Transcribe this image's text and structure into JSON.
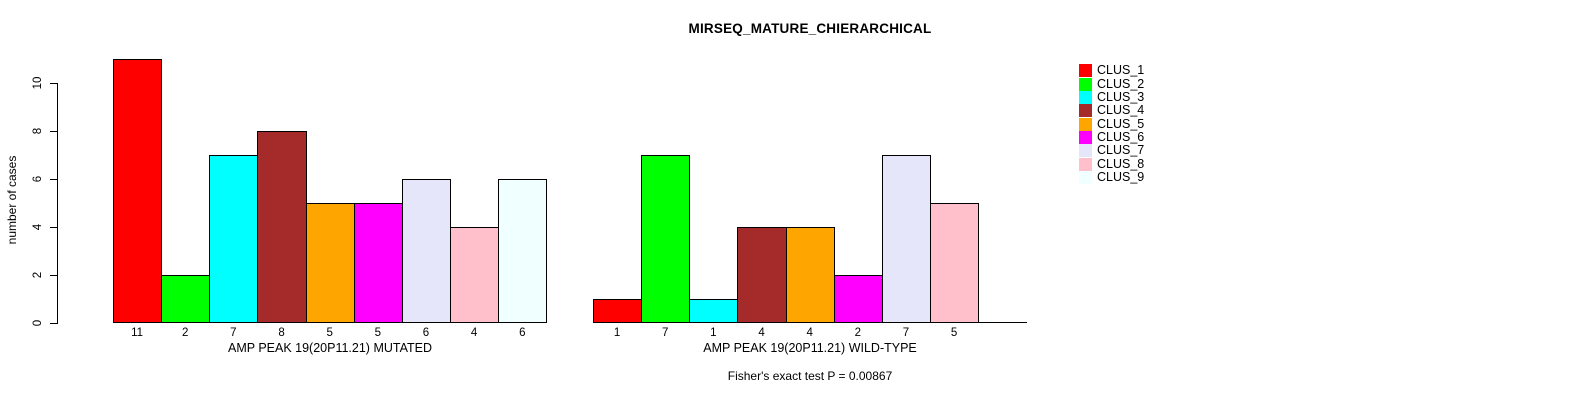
{
  "chart_data": {
    "type": "bar",
    "title": "MIRSEQ_MATURE_CHIERARCHICAL",
    "ylabel": "number of cases",
    "ylim": [
      0,
      11
    ],
    "yticks": [
      0,
      2,
      4,
      6,
      8,
      10
    ],
    "grid": false,
    "annotation": "Fisher's exact test P = 0.00867",
    "categories": [
      "CLUS_1",
      "CLUS_2",
      "CLUS_3",
      "CLUS_4",
      "CLUS_5",
      "CLUS_6",
      "CLUS_7",
      "CLUS_8",
      "CLUS_9"
    ],
    "groups": [
      {
        "xlabel": "AMP PEAK 19(20P11.21) MUTATED",
        "values": [
          11,
          2,
          7,
          8,
          5,
          5,
          6,
          4,
          6
        ],
        "bar_labels": [
          "11",
          "2",
          "7",
          "8",
          "5",
          "5",
          "6",
          "4",
          "6"
        ]
      },
      {
        "xlabel": "AMP PEAK 19(20P11.21) WILD-TYPE",
        "values": [
          1,
          7,
          1,
          4,
          4,
          2,
          7,
          5,
          0
        ],
        "bar_labels": [
          "1",
          "7",
          "1",
          "4",
          "4",
          "2",
          "7",
          "5",
          ""
        ]
      }
    ],
    "legend": {
      "position": "right",
      "entries": [
        {
          "label": "CLUS_1",
          "color": "#FF0000"
        },
        {
          "label": "CLUS_2",
          "color": "#00FF00"
        },
        {
          "label": "CLUS_3",
          "color": "#00FFFF"
        },
        {
          "label": "CLUS_4",
          "color": "#A52A2A"
        },
        {
          "label": "CLUS_5",
          "color": "#FFA500"
        },
        {
          "label": "CLUS_6",
          "color": "#FF00FF"
        },
        {
          "label": "CLUS_7",
          "color": "#E6E6FA"
        },
        {
          "label": "CLUS_8",
          "color": "#FFC0CB"
        },
        {
          "label": "CLUS_9",
          "color": "#F0FFFF"
        }
      ]
    }
  }
}
